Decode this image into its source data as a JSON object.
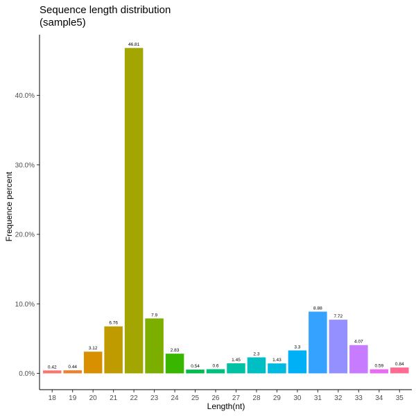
{
  "chart_data": {
    "type": "bar",
    "title": [
      "Sequence length distribution",
      "(sample5)"
    ],
    "xlabel": "Length(nt)",
    "ylabel": "Frequence percent",
    "categories": [
      "18",
      "19",
      "20",
      "21",
      "22",
      "23",
      "24",
      "25",
      "26",
      "27",
      "28",
      "29",
      "30",
      "31",
      "32",
      "33",
      "34",
      "35"
    ],
    "values": [
      0.42,
      0.44,
      3.12,
      6.76,
      46.81,
      7.9,
      2.83,
      0.54,
      0.6,
      1.45,
      2.3,
      1.43,
      3.3,
      8.88,
      7.72,
      4.07,
      0.59,
      0.84
    ],
    "data_labels": [
      "0.42",
      "0.44",
      "3.12",
      "6.76",
      "46.81",
      "7.9",
      "2.83",
      "0.54",
      "0.6",
      "1.45",
      "2.3",
      "1.43",
      "3.3",
      "8.88",
      "7.72",
      "4.07",
      "0.59",
      "0.84"
    ],
    "colors": [
      "#F8766D",
      "#EA8331",
      "#D89000",
      "#C09B00",
      "#A3A500",
      "#7CAE00",
      "#39B600",
      "#00BB4E",
      "#00BF7D",
      "#00C1A3",
      "#00BFC4",
      "#00BAE0",
      "#00B0F6",
      "#35A2FF",
      "#9590FF",
      "#C77CFF",
      "#E76BF3",
      "#FA62DB",
      "#FF62BC",
      "#FF6C91"
    ],
    "bar_colors": [
      "#F8766D",
      "#EA8331",
      "#D89000",
      "#C09B00",
      "#A3A500",
      "#7CAE00",
      "#39B600",
      "#00BB4E",
      "#00BF7D",
      "#00C1A3",
      "#00BFC4",
      "#00BAE0",
      "#00B0F6",
      "#35A2FF",
      "#9590FF",
      "#C77CFF",
      "#E76BF3",
      "#FF6C91"
    ],
    "yticks": [
      0,
      10,
      20,
      30,
      40
    ],
    "ytick_labels": [
      "0.0%",
      "10.0%",
      "20.0%",
      "30.0%",
      "40.0%"
    ],
    "ylim": [
      0,
      49
    ],
    "grid": false,
    "legend": "none"
  }
}
